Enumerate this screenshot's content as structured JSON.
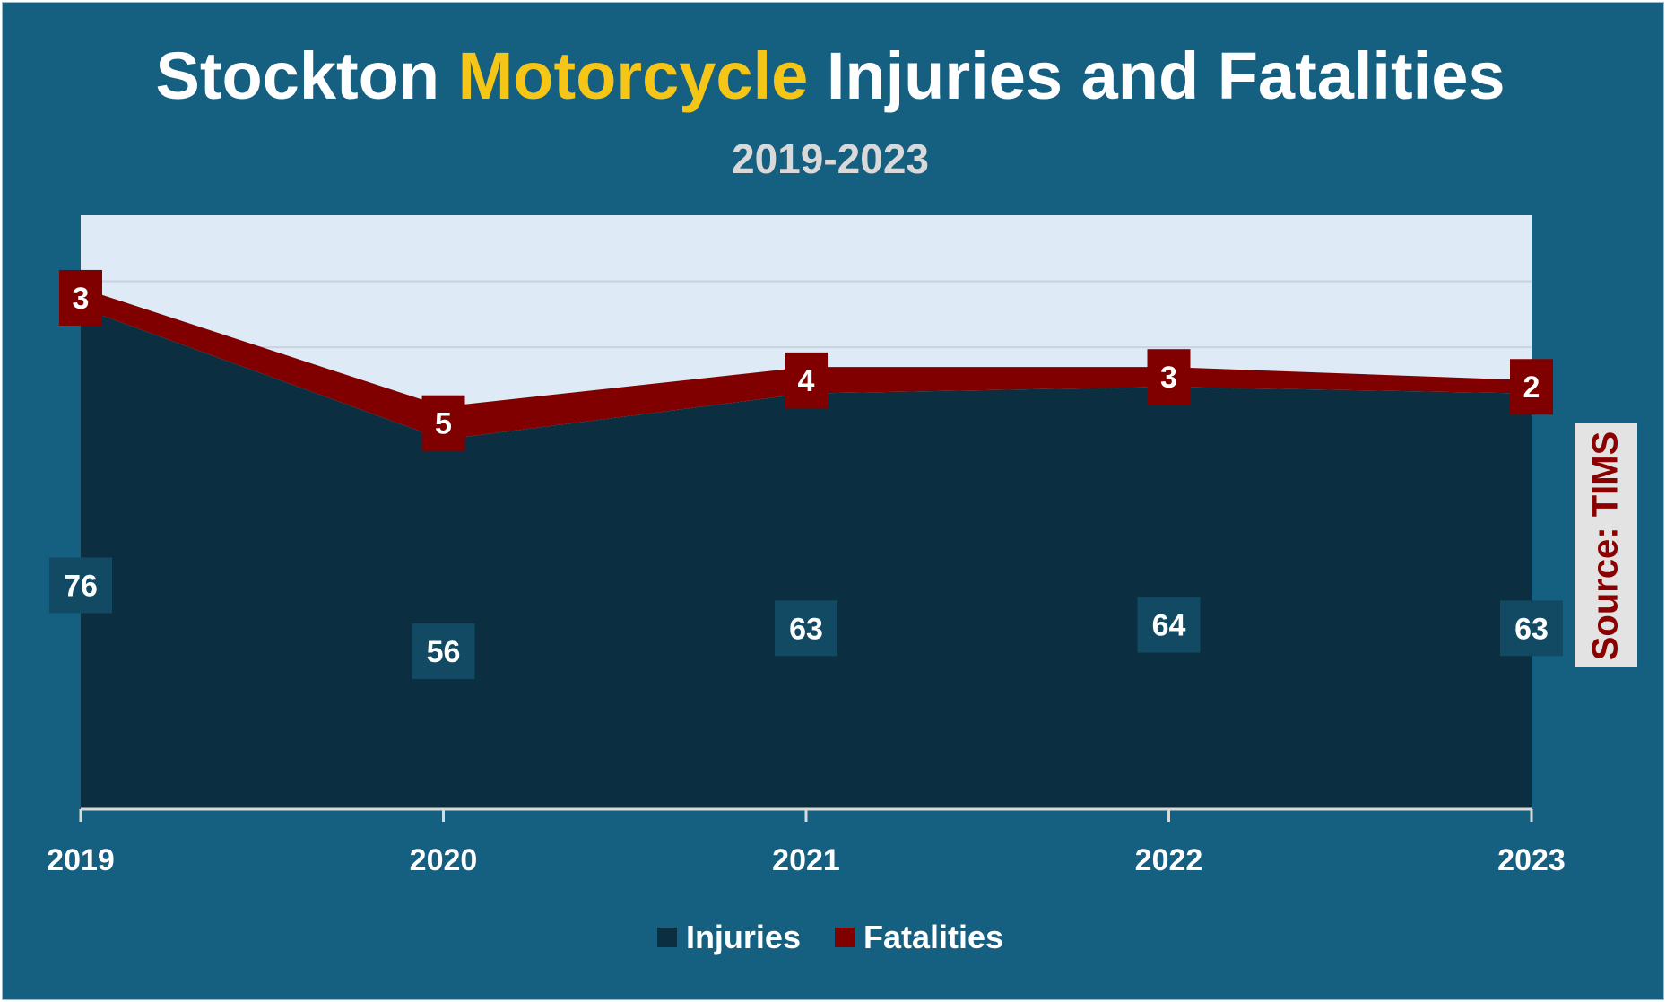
{
  "header": {
    "title_part1": "Stockton",
    "title_accent": "Motorcycle",
    "title_part2": "Injuries and Fatalities",
    "subtitle": "2019-2023"
  },
  "source_note": "Source: TIMS",
  "colors": {
    "background": "#155f80",
    "plot_area": "#deeaf6",
    "injuries": "#0b2e40",
    "fatalities": "#800000",
    "accent": "#f5c518"
  },
  "chart_data": {
    "type": "area",
    "categories": [
      "2019",
      "2020",
      "2021",
      "2022",
      "2023"
    ],
    "series": [
      {
        "name": "Injuries",
        "type": "area",
        "values": [
          76,
          56,
          63,
          64,
          63
        ]
      },
      {
        "name": "Fatalities",
        "type": "area",
        "values": [
          3,
          5,
          4,
          3,
          2
        ]
      }
    ],
    "stacked": true,
    "ylim": [
      0,
      90
    ],
    "grid": true,
    "legend": "bottom"
  }
}
